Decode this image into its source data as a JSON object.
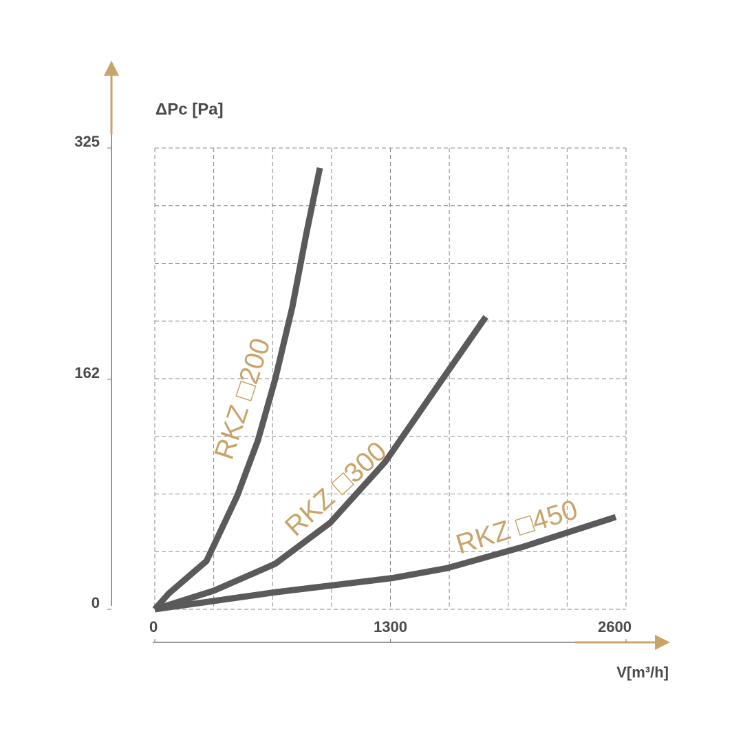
{
  "chart_data": {
    "type": "line",
    "y_label": "ΔPc [Pa]",
    "x_label": "V[m³/h]",
    "xlim": [
      0,
      2600
    ],
    "xticks": [
      0,
      1300,
      2600
    ],
    "ylim": [
      0,
      325
    ],
    "yticks": [
      0,
      162,
      325
    ],
    "grid": true,
    "series": [
      {
        "name": "RKZ □200",
        "color": "#5a5a5a",
        "x": [
          0,
          76,
          285,
          455,
          569,
          664,
          759,
          835,
          911
        ],
        "values": [
          0,
          11,
          34,
          80,
          119,
          162,
          213,
          264,
          311
        ]
      },
      {
        "name": "RKZ □300",
        "color": "#5a5a5a",
        "x": [
          0,
          323,
          664,
          968,
          1272,
          1575,
          1826
        ],
        "values": [
          0,
          13,
          32,
          61,
          104,
          160,
          206
        ]
      },
      {
        "name": "RKZ □450",
        "color": "#5a5a5a",
        "x": [
          0,
          664,
          1310,
          1613,
          2031,
          2543
        ],
        "values": [
          0,
          12,
          22,
          29,
          44,
          65
        ]
      }
    ]
  }
}
